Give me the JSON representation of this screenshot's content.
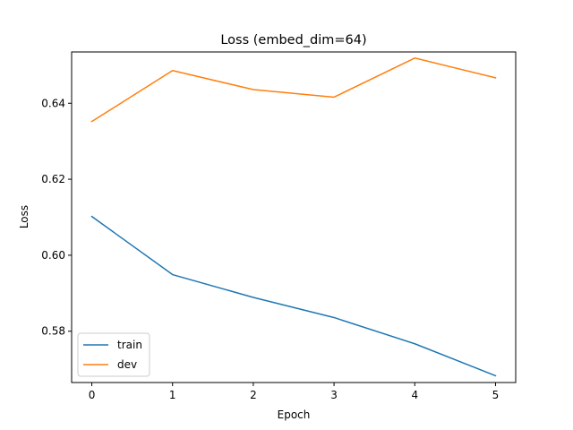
{
  "chart_data": {
    "type": "line",
    "title": "Loss (embed_dim=64)",
    "xlabel": "Epoch",
    "ylabel": "Loss",
    "x": [
      0,
      1,
      2,
      3,
      4,
      5
    ],
    "xticks": [
      "0",
      "1",
      "2",
      "3",
      "4",
      "5"
    ],
    "yticks": [
      0.58,
      0.6,
      0.62,
      0.64
    ],
    "ytick_labels": [
      "0.58",
      "0.60",
      "0.62",
      "0.64"
    ],
    "xlim": [
      -0.25,
      5.25
    ],
    "ylim": [
      0.5665,
      0.6535
    ],
    "grid": false,
    "legend_position": "lower-left",
    "series": [
      {
        "name": "train",
        "color": "#1f77b4",
        "values": [
          0.6102,
          0.5949,
          0.5889,
          0.5836,
          0.5767,
          0.5683
        ]
      },
      {
        "name": "dev",
        "color": "#ff7f0e",
        "values": [
          0.6352,
          0.6486,
          0.6436,
          0.6416,
          0.6519,
          0.6467
        ]
      }
    ]
  }
}
